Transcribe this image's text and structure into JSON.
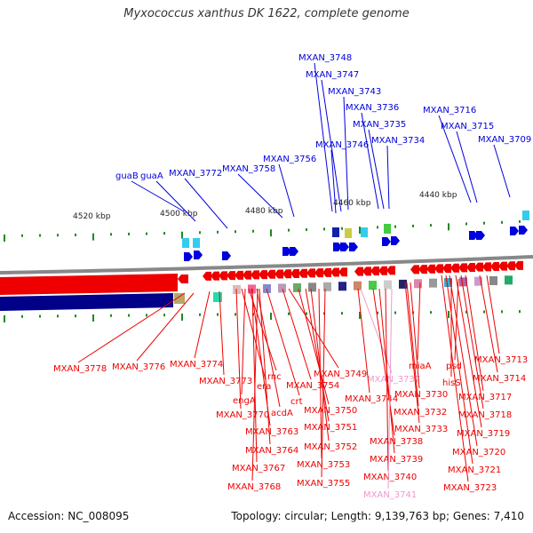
{
  "title": "Myxococcus xanthus DK 1622, complete genome",
  "accession_label": "Accession: NC_008095",
  "summary_label": "Topology: circular; Length: 9,139,763 bp; Genes: 7,410",
  "colors": {
    "forward_strand": "#0000dd",
    "reverse_strand": "#ee0000",
    "pseudo_gene": "#ee99cc",
    "backbone": "#888888",
    "tick": "#228822"
  },
  "scale_ticks": [
    "4520 kbp",
    "4500 kbp",
    "4480 kbp",
    "4460 kbp",
    "4440 kbp"
  ],
  "top_labels": [
    "guaB",
    "guaA",
    "MXAN_3772",
    "MXAN_3758",
    "MXAN_3756",
    "MXAN_3748",
    "MXAN_3747",
    "MXAN_3743",
    "MXAN_3736",
    "MXAN_3735",
    "MXAN_3746",
    "MXAN_3734",
    "MXAN_3716",
    "MXAN_3715",
    "MXAN_3709"
  ],
  "bottom_labels": [
    "MXAN_3778",
    "MXAN_3776",
    "MXAN_3774",
    "MXAN_3773",
    "era",
    "rnc",
    "engA",
    "MXAN_3770",
    "acdA",
    "crt",
    "MXAN_3749",
    "MXAN_3754",
    "MXAN_3750",
    "MXAN_3763",
    "MXAN_3751",
    "MXAN_3764",
    "MXAN_3752",
    "MXAN_3767",
    "MXAN_3753",
    "MXAN_3768",
    "MXAN_3755",
    "MXAN_3737",
    "MXAN_3744",
    "MXAN_3738",
    "MXAN_3739",
    "MXAN_3740",
    "MXAN_3741",
    "miaA",
    "MXAN_3730",
    "MXAN_3732",
    "MXAN_3733",
    "psd",
    "hisS",
    "MXAN_3713",
    "MXAN_3714",
    "MXAN_3717",
    "MXAN_3718",
    "MXAN_3719",
    "MXAN_3720",
    "MXAN_3721",
    "MXAN_3723"
  ],
  "pseudo_labels": [
    "MXAN_3737",
    "MXAN_3741"
  ]
}
